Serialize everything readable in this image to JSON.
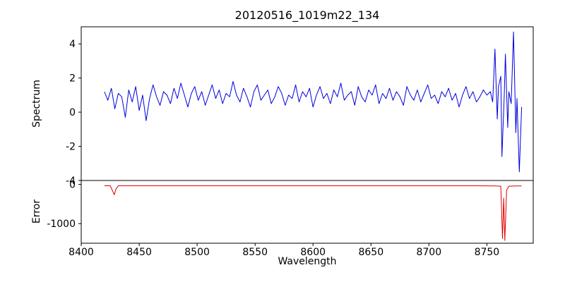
{
  "title": "20120516_1019m22_134",
  "xlabel": "Wavelength",
  "axes": {
    "xlim": [
      8400,
      8790
    ],
    "xticks": [
      8400,
      8450,
      8500,
      8550,
      8600,
      8650,
      8700,
      8750
    ],
    "background": "#ffffff",
    "spine_color": "#000000"
  },
  "chart_data": [
    {
      "type": "line",
      "name": "spectrum",
      "ylabel": "Spectrum",
      "color": "#0000dd",
      "ylim": [
        -4,
        5
      ],
      "yticks": [
        -4,
        -2,
        0,
        2,
        4
      ],
      "x_start": 8420,
      "x_step": 3,
      "y": [
        1.2,
        0.7,
        1.4,
        0.2,
        1.1,
        0.9,
        -0.3,
        1.3,
        0.6,
        1.5,
        0.1,
        1.0,
        -0.5,
        0.8,
        1.6,
        0.9,
        0.4,
        1.2,
        1.0,
        0.5,
        1.4,
        0.8,
        1.7,
        1.0,
        0.3,
        1.1,
        1.5,
        0.7,
        1.2,
        0.4,
        1.0,
        1.6,
        0.8,
        1.3,
        0.5,
        1.1,
        0.9,
        1.8,
        1.0,
        0.6,
        1.4,
        0.9,
        0.3,
        1.2,
        1.6,
        0.7,
        1.0,
        1.3,
        0.5,
        0.9,
        1.5,
        1.1,
        0.4,
        1.0,
        0.8,
        1.6,
        0.6,
        1.2,
        0.9,
        1.4,
        0.3,
        1.0,
        1.5,
        0.8,
        1.1,
        0.5,
        1.3,
        0.9,
        1.7,
        0.7,
        1.0,
        1.2,
        0.4,
        1.5,
        0.9,
        0.6,
        1.3,
        1.0,
        1.6,
        0.5,
        1.1,
        0.8,
        1.4,
        0.7,
        1.2,
        0.9,
        0.4,
        1.5,
        1.0,
        0.7,
        1.3,
        0.6,
        1.1,
        1.6,
        0.8,
        1.0,
        0.5,
        1.2,
        0.9,
        1.4,
        0.7,
        1.1,
        0.3,
        1.0,
        1.5,
        0.8,
        1.2,
        0.6,
        0.9,
        1.3,
        1.0
      ],
      "extra_points": {
        "x": [
          8753,
          8755,
          8757,
          8759,
          8760,
          8762,
          8763,
          8765,
          8766,
          8768,
          8769,
          8771,
          8773,
          8775,
          8776,
          8778,
          8780
        ],
        "y": [
          1.2,
          0.6,
          3.7,
          -0.4,
          1.5,
          2.1,
          -2.6,
          1.0,
          3.4,
          -0.9,
          1.2,
          0.5,
          4.7,
          -1.2,
          0.8,
          -3.5,
          0.3
        ]
      }
    },
    {
      "type": "line",
      "name": "error",
      "ylabel": "Error",
      "color": "#dd0000",
      "ylim": [
        -1500,
        100
      ],
      "yticks": [
        0,
        -1000
      ],
      "x": [
        8420,
        8425,
        8427,
        8428.5,
        8430,
        8432,
        8460,
        8550,
        8650,
        8740,
        8758,
        8762,
        8763.5,
        8764.5,
        8765.5,
        8767,
        8769,
        8775,
        8780
      ],
      "y": [
        -35,
        -35,
        -160,
        -265,
        -120,
        -35,
        -35,
        -35,
        -35,
        -35,
        -40,
        -45,
        -1380,
        -350,
        -1430,
        -150,
        -45,
        -40,
        -40
      ]
    }
  ]
}
